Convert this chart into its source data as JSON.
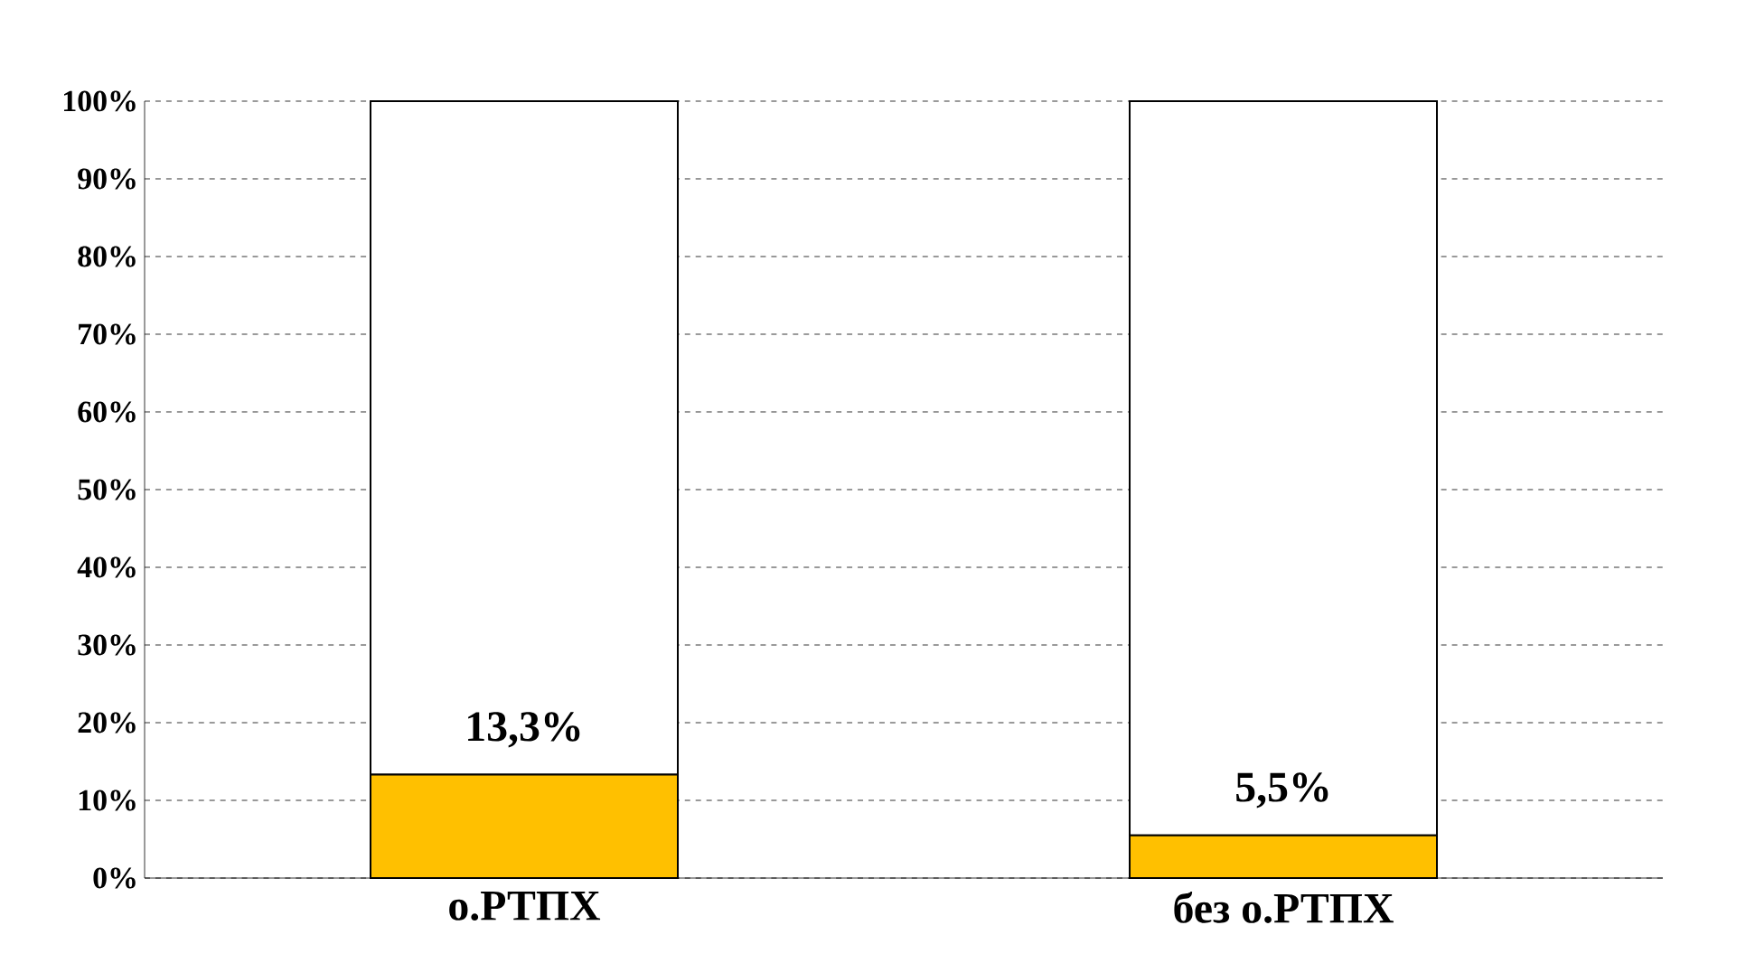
{
  "chart_data": {
    "type": "bar",
    "stacked": true,
    "categories": [
      "о.РТПХ",
      "без о.РТПХ"
    ],
    "series": [
      {
        "color": "#ffc000",
        "values": [
          13.3,
          5.5
        ],
        "value_labels": [
          "13,3%",
          "5,5%"
        ]
      },
      {
        "color": "#ffffff",
        "values": [
          86.7,
          94.5
        ]
      }
    ],
    "ylim": [
      0,
      100
    ],
    "yticks": [
      {
        "value": 0,
        "label": "0%"
      },
      {
        "value": 10,
        "label": "10%"
      },
      {
        "value": 20,
        "label": "20%"
      },
      {
        "value": 30,
        "label": "30%"
      },
      {
        "value": 40,
        "label": "40%"
      },
      {
        "value": 50,
        "label": "50%"
      },
      {
        "value": 60,
        "label": "60%"
      },
      {
        "value": 70,
        "label": "70%"
      },
      {
        "value": 80,
        "label": "80%"
      },
      {
        "value": 90,
        "label": "90%"
      },
      {
        "value": 100,
        "label": "100%"
      }
    ],
    "grid": "y"
  }
}
